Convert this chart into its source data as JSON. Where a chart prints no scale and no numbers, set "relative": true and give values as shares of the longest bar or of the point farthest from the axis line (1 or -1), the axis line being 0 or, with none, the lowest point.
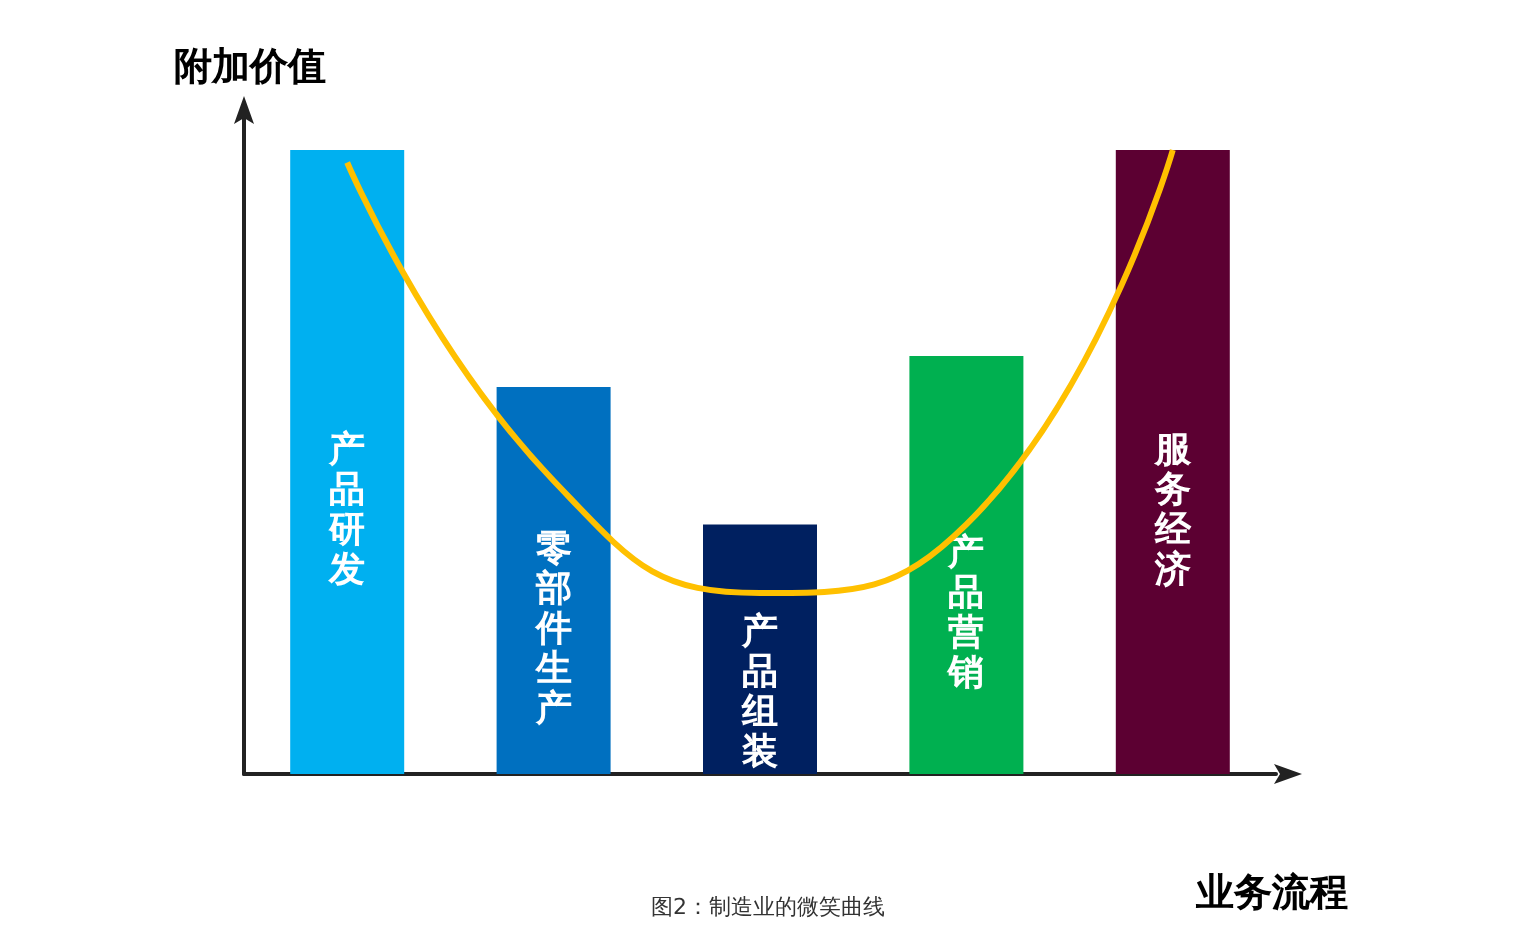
{
  "chart_data": {
    "type": "bar",
    "relative": true,
    "ylabel": "附加价值",
    "xlabel": "业务流程",
    "annotations": [
      "图2：制造业的微笑曲线"
    ],
    "categories": [
      "产品研发",
      "零部件生产",
      "产品组装",
      "产品营销",
      "服务经济"
    ],
    "tick_labels": false,
    "marker": "none",
    "series": [
      {
        "colors": [
          "#00b0f0",
          "#0070c0",
          "#002060",
          "#00b050",
          "#5c0032"
        ],
        "values": [
          1.0,
          0.62,
          0.4,
          0.67,
          1.0
        ]
      },
      {
        "type": "line",
        "color": "#ffc000",
        "values": [
          0.98,
          0.47,
          0.29,
          0.4,
          1.0
        ]
      }
    ]
  }
}
